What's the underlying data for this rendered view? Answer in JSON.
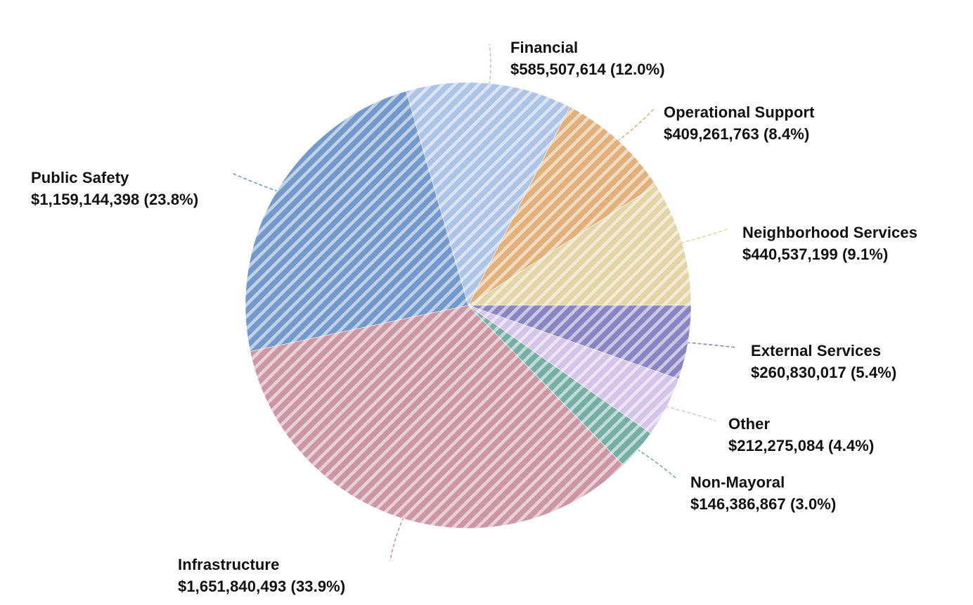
{
  "chart_data": {
    "type": "pie",
    "title": "",
    "slices": [
      {
        "name": "Neighborhood Services",
        "value": 440537199,
        "percent_label": "9.1%",
        "value_label": "$440,537,199 (9.1%)",
        "color": "#e3d5a6"
      },
      {
        "name": "Operational Support",
        "value": 409261763,
        "percent_label": "8.4%",
        "value_label": "$409,261,763 (8.4%)",
        "color": "#e2b07a"
      },
      {
        "name": "Financial",
        "value": 585507614,
        "percent_label": "12.0%",
        "value_label": "$585,507,614 (12.0%)",
        "color": "#aec4e6"
      },
      {
        "name": "Public Safety",
        "value": 1159144398,
        "percent_label": "23.8%",
        "value_label": "$1,159,144,398 (23.8%)",
        "color": "#7399cb"
      },
      {
        "name": "Infrastructure",
        "value": 1651840493,
        "percent_label": "33.9%",
        "value_label": "$1,651,840,493 (33.9%)",
        "color": "#cc96a6"
      },
      {
        "name": "Non-Mayoral",
        "value": 146386867,
        "percent_label": "3.0%",
        "value_label": "$146,386,867 (3.0%)",
        "color": "#76aea6"
      },
      {
        "name": "Other",
        "value": 212275084,
        "percent_label": "4.4%",
        "value_label": "$212,275,084 (4.4%)",
        "color": "#d4c4e8"
      },
      {
        "name": "External Services",
        "value": 260830017,
        "percent_label": "5.4%",
        "value_label": "$260,830,017 (5.4%)",
        "color": "#8a84c2"
      }
    ],
    "start_direction": "east",
    "rotation": "counter-clockwise",
    "fill_pattern": "diagonal-stripes"
  }
}
